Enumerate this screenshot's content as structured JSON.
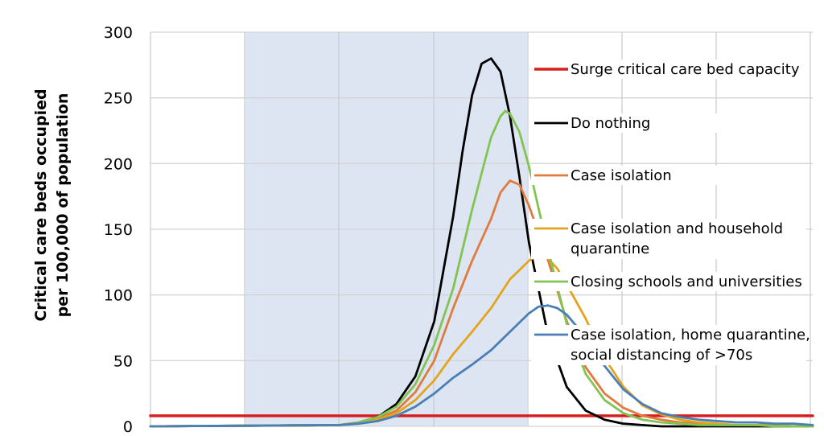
{
  "chart_data": {
    "type": "line",
    "title": "",
    "ylabel_lines": [
      "Critical care beds occupied",
      "per 100,000 of population"
    ],
    "xlabel": "",
    "ylim": [
      0,
      300
    ],
    "yticks": [
      0,
      50,
      100,
      150,
      200,
      250,
      300
    ],
    "grid": true,
    "shaded_region": true,
    "legend_position": "right",
    "series": [
      {
        "name": "Surge critical care bed capacity",
        "color": "#d71f1f",
        "x": [
          0,
          140
        ],
        "y": [
          8,
          8
        ]
      },
      {
        "name": "Do nothing",
        "color": "#000000",
        "x": [
          0,
          40,
          44,
          48,
          52,
          56,
          60,
          64,
          66,
          68,
          70,
          72,
          74,
          76,
          78,
          80,
          84,
          88,
          92,
          96,
          100,
          104,
          108,
          112,
          116,
          120,
          124,
          128,
          132,
          140
        ],
        "y": [
          0,
          1,
          3,
          7,
          17,
          38,
          80,
          160,
          210,
          252,
          276,
          280,
          270,
          236,
          190,
          140,
          70,
          30,
          12,
          5,
          2,
          1,
          0,
          0,
          0,
          0,
          0,
          0,
          0,
          0
        ]
      },
      {
        "name": "Case isolation",
        "color": "#e07b3f",
        "x": [
          0,
          40,
          44,
          48,
          52,
          56,
          60,
          64,
          68,
          72,
          74,
          76,
          78,
          80,
          84,
          88,
          92,
          96,
          100,
          104,
          108,
          112,
          116,
          120,
          124,
          128,
          132,
          136,
          140
        ],
        "y": [
          0,
          1,
          3,
          6,
          12,
          26,
          50,
          90,
          126,
          158,
          178,
          187,
          184,
          168,
          127,
          80,
          45,
          25,
          14,
          8,
          5,
          3,
          2,
          1,
          1,
          1,
          1,
          0,
          0
        ]
      },
      {
        "name": "Case isolation and household quarantine",
        "color": "#e3a41c",
        "x": [
          0,
          40,
          44,
          48,
          52,
          56,
          60,
          64,
          68,
          72,
          76,
          80,
          82,
          84,
          86,
          88,
          92,
          96,
          100,
          104,
          108,
          112,
          116,
          120,
          124,
          128,
          132,
          136,
          140
        ],
        "y": [
          0,
          1,
          2,
          5,
          10,
          20,
          35,
          55,
          72,
          90,
          112,
          126,
          131,
          128,
          120,
          108,
          82,
          52,
          30,
          16,
          9,
          5,
          3,
          2,
          1,
          1,
          1,
          0,
          0
        ]
      },
      {
        "name": "Closing schools and universities",
        "color": "#82c451",
        "x": [
          0,
          40,
          44,
          48,
          52,
          56,
          60,
          64,
          68,
          72,
          74,
          75,
          76,
          78,
          80,
          84,
          88,
          92,
          96,
          100,
          104,
          108,
          112,
          116,
          120,
          124,
          128,
          132,
          140
        ],
        "y": [
          0,
          1,
          3,
          7,
          15,
          32,
          62,
          105,
          165,
          220,
          236,
          240,
          238,
          224,
          198,
          135,
          78,
          40,
          20,
          10,
          5,
          3,
          2,
          1,
          1,
          1,
          1,
          0,
          0
        ]
      },
      {
        "name": "Case isolation, home quarantine, social distancing of >70s",
        "color": "#4a7fb5",
        "x": [
          0,
          40,
          44,
          48,
          52,
          56,
          60,
          64,
          68,
          72,
          76,
          80,
          82,
          84,
          86,
          88,
          92,
          96,
          100,
          104,
          108,
          112,
          116,
          120,
          124,
          128,
          132,
          136,
          140
        ],
        "y": [
          0,
          1,
          2,
          4,
          8,
          15,
          25,
          37,
          47,
          58,
          72,
          86,
          91,
          92,
          90,
          85,
          68,
          46,
          28,
          17,
          10,
          7,
          5,
          4,
          3,
          3,
          2,
          2,
          1
        ]
      }
    ],
    "legend_lines": [
      {
        "series": 0,
        "lines": [
          "Surge critical care bed capacity"
        ]
      },
      {
        "series": 1,
        "lines": [
          "Do nothing"
        ]
      },
      {
        "series": 2,
        "lines": [
          "Case isolation"
        ]
      },
      {
        "series": 3,
        "lines": [
          "Case isolation and household",
          "quarantine"
        ]
      },
      {
        "series": 4,
        "lines": [
          "Closing schools and universities"
        ]
      },
      {
        "series": 5,
        "lines": [
          "Case isolation, home quarantine,",
          "social distancing of >70s"
        ]
      }
    ]
  }
}
